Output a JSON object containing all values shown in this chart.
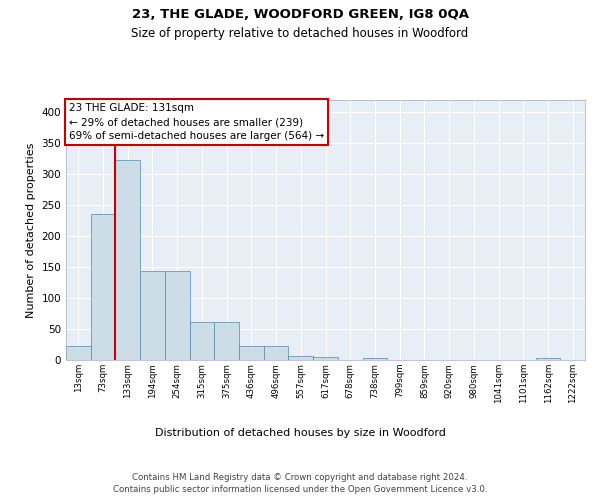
{
  "title": "23, THE GLADE, WOODFORD GREEN, IG8 0QA",
  "subtitle": "Size of property relative to detached houses in Woodford",
  "xlabel": "Distribution of detached houses by size in Woodford",
  "ylabel": "Number of detached properties",
  "bin_edges": [
    13,
    73,
    133,
    194,
    254,
    315,
    375,
    436,
    496,
    557,
    617,
    678,
    738,
    799,
    859,
    920,
    980,
    1041,
    1101,
    1162,
    1222
  ],
  "bar_heights": [
    22,
    236,
    323,
    144,
    144,
    62,
    62,
    22,
    22,
    6,
    5,
    0,
    4,
    0,
    0,
    0,
    0,
    0,
    0,
    3,
    0
  ],
  "bar_color": "#ccdde8",
  "bar_edgecolor": "#5588aa",
  "property_line_x": 133,
  "property_line_color": "#cc0000",
  "annotation_text": "23 THE GLADE: 131sqm\n← 29% of detached houses are smaller (239)\n69% of semi-detached houses are larger (564) →",
  "annotation_box_edgecolor": "#cc0000",
  "annotation_box_facecolor": "#ffffff",
  "ylim": [
    0,
    420
  ],
  "yticks": [
    0,
    50,
    100,
    150,
    200,
    250,
    300,
    350,
    400
  ],
  "background_color": "#e8eef5",
  "grid_color": "#ffffff",
  "footer_text": "Contains HM Land Registry data © Crown copyright and database right 2024.\nContains public sector information licensed under the Open Government Licence v3.0.",
  "tick_labels": [
    "13sqm",
    "73sqm",
    "133sqm",
    "194sqm",
    "254sqm",
    "315sqm",
    "375sqm",
    "436sqm",
    "496sqm",
    "557sqm",
    "617sqm",
    "678sqm",
    "738sqm",
    "799sqm",
    "859sqm",
    "920sqm",
    "980sqm",
    "1041sqm",
    "1101sqm",
    "1162sqm",
    "1222sqm"
  ]
}
